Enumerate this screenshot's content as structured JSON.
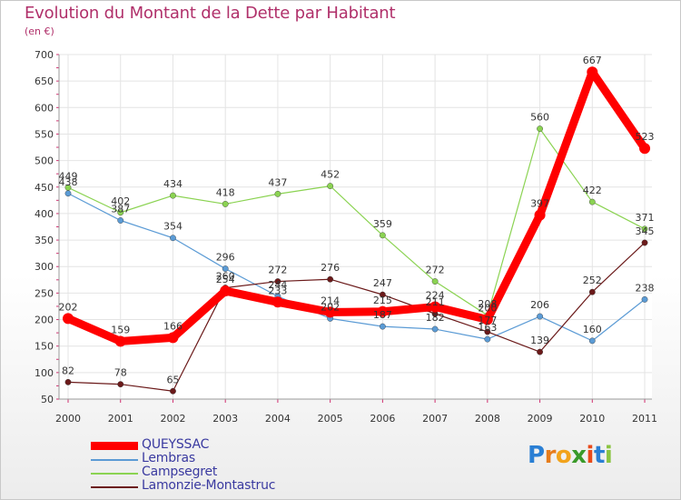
{
  "title": "Evolution du Montant de la Dette par Habitant",
  "subtitle": "(en €)",
  "brand": {
    "text": "Proxiti",
    "letters": [
      "P",
      "r",
      "o",
      "x",
      "i",
      "t",
      "i"
    ],
    "colors": [
      "#2a7fd4",
      "#e77c1b",
      "#f2a31b",
      "#3a9a2a",
      "#e84a1a",
      "#2a7fd4",
      "#8ac441"
    ]
  },
  "chart_data": {
    "type": "line",
    "x": [
      "2000",
      "2001",
      "2002",
      "2003",
      "2004",
      "2005",
      "2006",
      "2007",
      "2008",
      "2009",
      "2010",
      "2011"
    ],
    "ylim": [
      50,
      700
    ],
    "yticks": [
      50,
      100,
      150,
      200,
      250,
      300,
      350,
      400,
      450,
      500,
      550,
      600,
      650,
      700
    ],
    "grid": true,
    "legend_position": "bottom-left",
    "series": [
      {
        "name": "Lembras",
        "color": "#5b9bd5",
        "values": [
          438,
          387,
          354,
          296,
          244,
          202,
          187,
          182,
          163,
          206,
          160,
          238
        ]
      },
      {
        "name": "Campsegret",
        "color": "#8bd352",
        "values": [
          449,
          402,
          434,
          418,
          437,
          452,
          359,
          272,
          208,
          560,
          422,
          371
        ]
      },
      {
        "name": "Lamonzie-Montastruc",
        "color": "#6b1a1a",
        "values": [
          82,
          78,
          65,
          260,
          272,
          276,
          247,
          211,
          177,
          139,
          252,
          345
        ]
      },
      {
        "name": "QUEYSSAC",
        "color": "#ff0000",
        "values": [
          202,
          159,
          166,
          254,
          233,
          214,
          215,
          224,
          200,
          397,
          667,
          523
        ]
      }
    ]
  },
  "legend": [
    {
      "label": "QUEYSSAC",
      "color": "#ff0000"
    },
    {
      "label": "Lembras",
      "color": "#5b9bd5"
    },
    {
      "label": "Campsegret",
      "color": "#8bd352"
    },
    {
      "label": "Lamonzie-Montastruc",
      "color": "#6b1a1a"
    }
  ]
}
